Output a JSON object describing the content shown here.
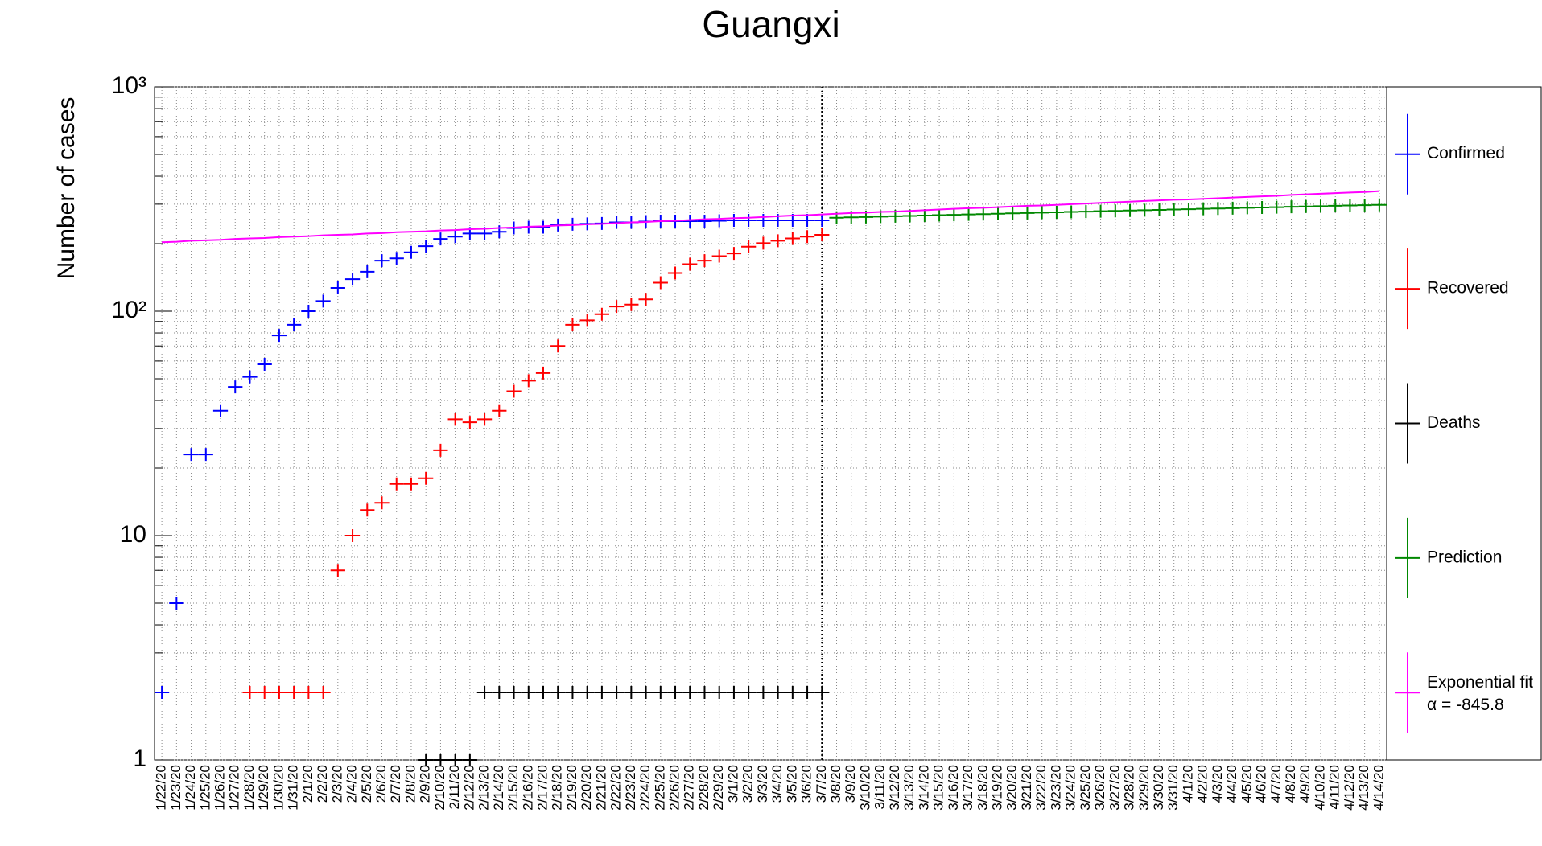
{
  "chart_data": {
    "type": "errorbar",
    "title": "Guangxi",
    "y_label": "Number of cases",
    "log_y": true,
    "grid": true,
    "legend": "right",
    "fit_annotation": "α = -845.8",
    "categories": [
      "1/22/20",
      "1/23/20",
      "1/24/20",
      "1/25/20",
      "1/26/20",
      "1/27/20",
      "1/28/20",
      "1/29/20",
      "1/30/20",
      "1/31/20",
      "2/1/20",
      "2/2/20",
      "2/3/20",
      "2/4/20",
      "2/5/20",
      "2/6/20",
      "2/7/20",
      "2/8/20",
      "2/9/20",
      "2/10/20",
      "2/11/20",
      "2/12/20",
      "2/13/20",
      "2/14/20",
      "2/15/20",
      "2/16/20",
      "2/17/20",
      "2/18/20",
      "2/19/20",
      "2/20/20",
      "2/21/20",
      "2/22/20",
      "2/23/20",
      "2/24/20",
      "2/25/20",
      "2/26/20",
      "2/27/20",
      "2/28/20",
      "2/29/20",
      "3/1/20",
      "3/2/20",
      "3/3/20",
      "3/4/20",
      "3/5/20",
      "3/6/20",
      "3/7/20",
      "3/8/20",
      "3/9/20",
      "3/10/20",
      "3/11/20",
      "3/12/20",
      "3/13/20",
      "3/14/20",
      "3/15/20",
      "3/16/20",
      "3/17/20",
      "3/18/20",
      "3/19/20",
      "3/20/20",
      "3/21/20",
      "3/22/20",
      "3/23/20",
      "3/24/20",
      "3/25/20",
      "3/26/20",
      "3/27/20",
      "3/28/20",
      "3/29/20",
      "3/30/20",
      "3/31/20",
      "4/1/20",
      "4/2/20",
      "4/3/20",
      "4/4/20",
      "4/5/20",
      "4/6/20",
      "4/7/20",
      "4/8/20",
      "4/9/20",
      "4/10/20",
      "4/11/20",
      "4/12/20",
      "4/13/20",
      "4/14/20"
    ],
    "series": [
      {
        "name": "Confirmed",
        "color": "#0000ff",
        "values": [
          2,
          5,
          23,
          23,
          36,
          46,
          51,
          58,
          78,
          87,
          100,
          111,
          127,
          139,
          150,
          168,
          172,
          183,
          195,
          210,
          215,
          222,
          222,
          226,
          235,
          237,
          237,
          242,
          244,
          245,
          246,
          249,
          249,
          251,
          252,
          252,
          252,
          252,
          253,
          254,
          254,
          254,
          254,
          254,
          254,
          254,
          null,
          null,
          null,
          null,
          null,
          null,
          null,
          null,
          null,
          null,
          null,
          null,
          null,
          null,
          null,
          null,
          null,
          null,
          null,
          null,
          null,
          null,
          null,
          null,
          null,
          null,
          null,
          null,
          null,
          null,
          null,
          null,
          null,
          null,
          null,
          null,
          null,
          null
        ]
      },
      {
        "name": "Recovered",
        "color": "#ff0000",
        "values": [
          null,
          null,
          null,
          null,
          null,
          null,
          2,
          2,
          2,
          2,
          2,
          2,
          7,
          10,
          13,
          14,
          17,
          17,
          18,
          24,
          33,
          32,
          33,
          36,
          44,
          49,
          53,
          70,
          87,
          91,
          97,
          105,
          107,
          113,
          134,
          148,
          162,
          168,
          176,
          181,
          194,
          201,
          206,
          211,
          215,
          219,
          null,
          null,
          null,
          null,
          null,
          null,
          null,
          null,
          null,
          null,
          null,
          null,
          null,
          null,
          null,
          null,
          null,
          null,
          null,
          null,
          null,
          null,
          null,
          null,
          null,
          null,
          null,
          null,
          null,
          null,
          null,
          null,
          null,
          null,
          null,
          null,
          null,
          null
        ]
      },
      {
        "name": "Deaths",
        "color": "#000000",
        "values": [
          null,
          null,
          null,
          null,
          null,
          null,
          null,
          null,
          null,
          null,
          null,
          null,
          null,
          null,
          null,
          null,
          null,
          null,
          1,
          1,
          1,
          1,
          2,
          2,
          2,
          2,
          2,
          2,
          2,
          2,
          2,
          2,
          2,
          2,
          2,
          2,
          2,
          2,
          2,
          2,
          2,
          2,
          2,
          2,
          2,
          2,
          null,
          null,
          null,
          null,
          null,
          null,
          null,
          null,
          null,
          null,
          null,
          null,
          null,
          null,
          null,
          null,
          null,
          null,
          null,
          null,
          null,
          null,
          null,
          null,
          null,
          null,
          null,
          null,
          null,
          null,
          null,
          null,
          null,
          null,
          null,
          null,
          null,
          null
        ]
      },
      {
        "name": "Prediction",
        "color": "#008800",
        "values": [
          null,
          null,
          null,
          null,
          null,
          null,
          null,
          null,
          null,
          null,
          null,
          null,
          null,
          null,
          null,
          null,
          null,
          null,
          null,
          null,
          null,
          null,
          null,
          null,
          null,
          null,
          null,
          null,
          null,
          null,
          null,
          null,
          null,
          null,
          null,
          null,
          null,
          null,
          null,
          null,
          null,
          null,
          null,
          null,
          null,
          null,
          261,
          262,
          263,
          264,
          265,
          266,
          267,
          268,
          269,
          270,
          271,
          272,
          273,
          274,
          275,
          276,
          277,
          278,
          279,
          280,
          281,
          282,
          283,
          284,
          285,
          286,
          287,
          288,
          289,
          290,
          291,
          292,
          293,
          294,
          295,
          296,
          297,
          298
        ]
      },
      {
        "name": "Exponential fit",
        "color": "#ff00ff",
        "line": true,
        "values": [
          203,
          204,
          206,
          207,
          208,
          210,
          211,
          212,
          214,
          215,
          216,
          218,
          219,
          220,
          222,
          223,
          225,
          226,
          227,
          229,
          230,
          232,
          233,
          235,
          236,
          238,
          239,
          241,
          242,
          244,
          245,
          247,
          249,
          250,
          252,
          253,
          255,
          257,
          258,
          260,
          261,
          263,
          265,
          267,
          268,
          270,
          272,
          274,
          275,
          277,
          278,
          280,
          282,
          284,
          286,
          288,
          289,
          291,
          293,
          295,
          296,
          298,
          300,
          302,
          304,
          306,
          308,
          310,
          312,
          314,
          315,
          317,
          319,
          321,
          323,
          325,
          327,
          330,
          332,
          334,
          336,
          338,
          340,
          343
        ]
      }
    ],
    "ylim": [
      1,
      1000
    ],
    "yticks": [
      1,
      10,
      {
        "value": 100,
        "label": "10²"
      },
      {
        "value": 1000,
        "label": "10³"
      }
    ]
  }
}
